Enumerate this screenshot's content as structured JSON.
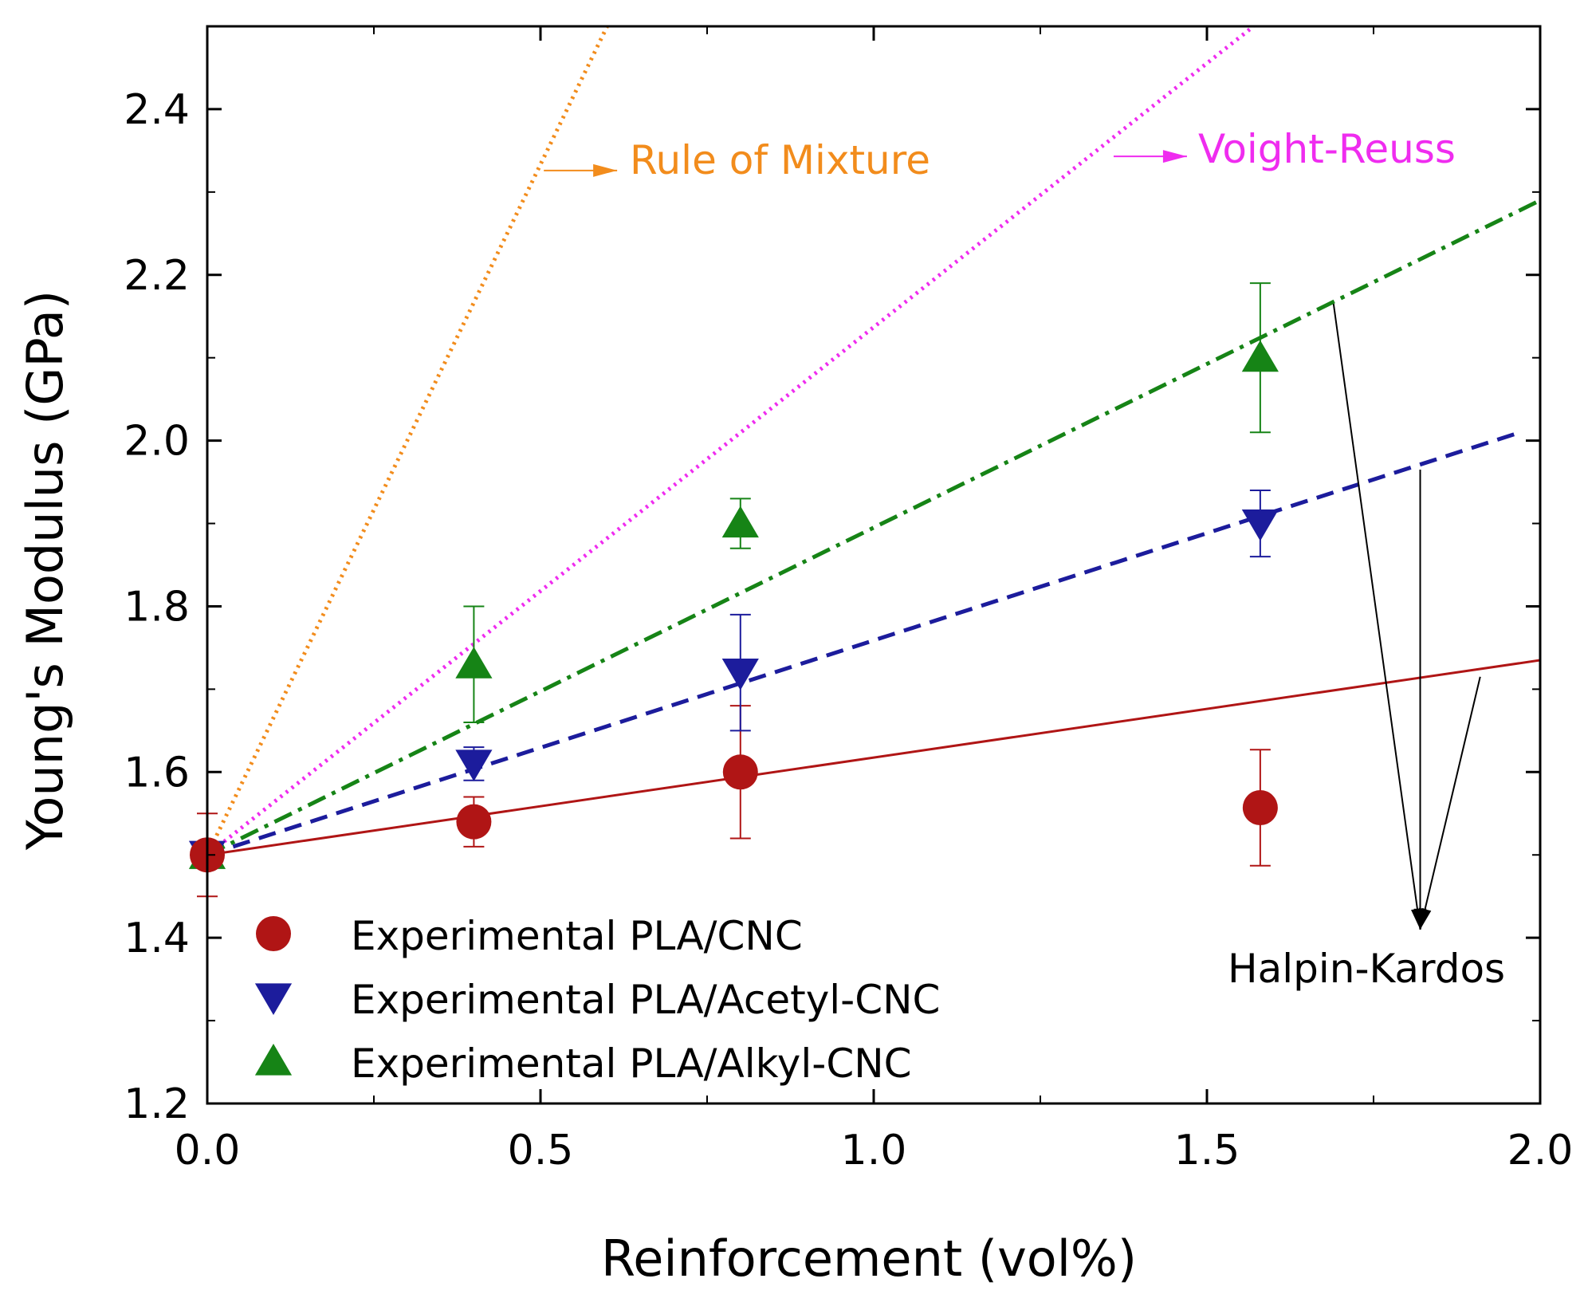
{
  "chart_data": {
    "type": "line",
    "xlabel": "Reinforcement (vol%)",
    "ylabel": "Young's Modulus (GPa)",
    "xlim": [
      0.0,
      2.0
    ],
    "ylim": [
      1.2,
      2.5
    ],
    "xticks": [
      0.0,
      0.5,
      1.0,
      1.5,
      2.0
    ],
    "xtick_labels": [
      "0.0",
      "0.5",
      "1.0",
      "1.5",
      "2.0"
    ],
    "yticks": [
      1.2,
      1.4,
      1.6,
      1.8,
      2.0,
      2.2,
      2.4
    ],
    "ytick_labels": [
      "1.2",
      "1.4",
      "1.6",
      "1.8",
      "2.0",
      "2.2",
      "2.4"
    ],
    "grid": false,
    "legend_position": "bottom-left",
    "experimental": [
      {
        "name": "Experimental PLA/CNC",
        "marker": "circle",
        "color": "#b01515",
        "x": [
          0.0,
          0.4,
          0.8,
          1.58
        ],
        "y": [
          1.5,
          1.54,
          1.6,
          1.557
        ],
        "err": [
          0.05,
          0.03,
          0.08,
          0.07
        ]
      },
      {
        "name": "Experimental PLA/Acetyl-CNC",
        "marker": "triangle-down",
        "color": "#1c1c9c",
        "x": [
          0.0,
          0.4,
          0.8,
          1.58
        ],
        "y": [
          1.5,
          1.61,
          1.72,
          1.9
        ],
        "err": [
          0.0,
          0.02,
          0.07,
          0.04
        ]
      },
      {
        "name": "Experimental PLA/Alkyl-CNC",
        "marker": "triangle-up",
        "color": "#168416",
        "x": [
          0.0,
          0.4,
          0.8,
          1.58
        ],
        "y": [
          1.5,
          1.73,
          1.9,
          2.1
        ],
        "err": [
          0.0,
          0.07,
          0.03,
          0.09
        ]
      }
    ],
    "models": [
      {
        "name": "Rule of Mixture",
        "style": "dotted",
        "color": "#f28c1c",
        "x": [
          0.0,
          0.6
        ],
        "y": [
          1.5,
          2.5
        ]
      },
      {
        "name": "Voight-Reuss",
        "style": "dotted",
        "color": "#ef2cef",
        "x": [
          0.0,
          1.57
        ],
        "y": [
          1.5,
          2.5
        ]
      },
      {
        "name": "Halpin-Kardos (Alkyl)",
        "style": "dashdot",
        "color": "#168416",
        "x": [
          0.0,
          2.0
        ],
        "y": [
          1.5,
          2.29
        ]
      },
      {
        "name": "Halpin-Kardos (Acetyl)",
        "style": "dashed",
        "color": "#1c1c9c",
        "x": [
          0.0,
          1.97
        ],
        "y": [
          1.5,
          2.01
        ]
      },
      {
        "name": "Halpin-Kardos (CNC)",
        "style": "solid",
        "color": "#b01515",
        "x": [
          0.0,
          2.0
        ],
        "y": [
          1.5,
          1.735
        ]
      }
    ],
    "annotations": {
      "rule_of_mixture": "Rule of Mixture",
      "voight_reuss": "Voight-Reuss",
      "halpin_kardos": "Halpin-Kardos"
    }
  }
}
